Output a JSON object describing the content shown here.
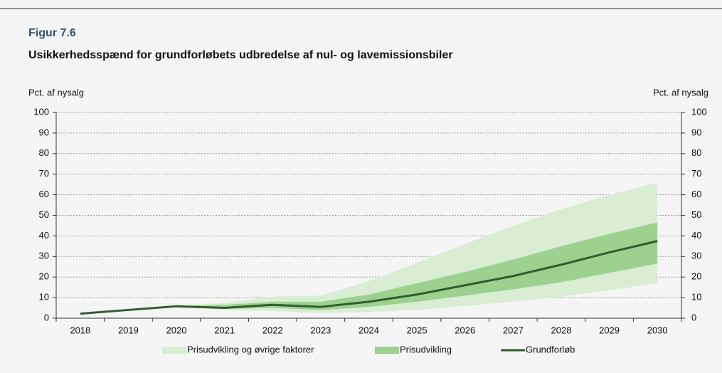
{
  "chart_data": {
    "type": "band-line",
    "figure_label": "Figur 7.6",
    "title": "Usikkerhedsspænd for grundforløbets udbredelse af nul- og lavemissionsbiler",
    "y_label": "Pct. af nysalg",
    "y2_label": "Pct. af nysalg",
    "categories": [
      "2018",
      "2019",
      "2020",
      "2021",
      "2022",
      "2023",
      "2024",
      "2025",
      "2026",
      "2027",
      "2028",
      "2029",
      "2030"
    ],
    "ylim": [
      0,
      100
    ],
    "yticks": [
      0,
      10,
      20,
      30,
      40,
      50,
      60,
      70,
      80,
      90,
      100
    ],
    "y2lim": [
      0,
      100
    ],
    "y2ticks": [
      0,
      10,
      20,
      30,
      40,
      50,
      60,
      70,
      80,
      90,
      100
    ],
    "grid": true,
    "bands": [
      {
        "name": "Prisudvikling og øvrige faktorer",
        "color": "#d9edd3",
        "lower": [
          null,
          null,
          5.5,
          4,
          3.5,
          2.5,
          3,
          4,
          6,
          8,
          10.5,
          13.5,
          17
        ],
        "upper": [
          null,
          null,
          6,
          7.5,
          10.5,
          11,
          18,
          27,
          36,
          45,
          53,
          60,
          66
        ]
      },
      {
        "name": "Prisudvikling",
        "color": "#9dd190",
        "lower": [
          null,
          null,
          5.5,
          4.5,
          5,
          4,
          5.5,
          8,
          11,
          14,
          17.5,
          22,
          26.5
        ],
        "upper": [
          null,
          null,
          6,
          6.5,
          8,
          8,
          11.5,
          17,
          22.5,
          28.5,
          35,
          41,
          46.5
        ]
      }
    ],
    "series": [
      {
        "name": "Grundforløb",
        "color": "#2f5f2f",
        "values": [
          2.2,
          4,
          5.8,
          5,
          6.5,
          5.5,
          8,
          11.5,
          16,
          20.5,
          26,
          32,
          37.5
        ]
      }
    ]
  }
}
